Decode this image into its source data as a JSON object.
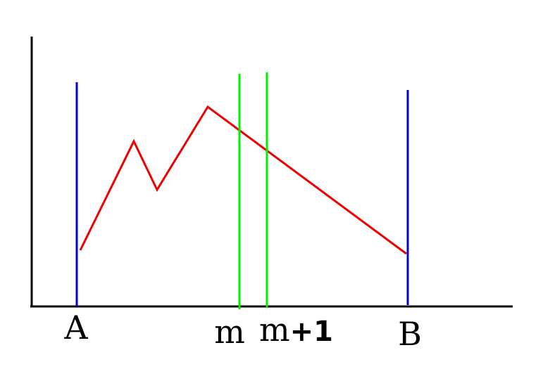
{
  "labels": {
    "a": "A",
    "m": "m",
    "m_plus_1_letter": "m",
    "m_plus_1_suffix": "+1",
    "b": "B"
  },
  "colors": {
    "axis": "#000000",
    "boundary_lines": "#0000dd",
    "middle_lines": "#00ee00",
    "curve": "#ee0000"
  }
}
